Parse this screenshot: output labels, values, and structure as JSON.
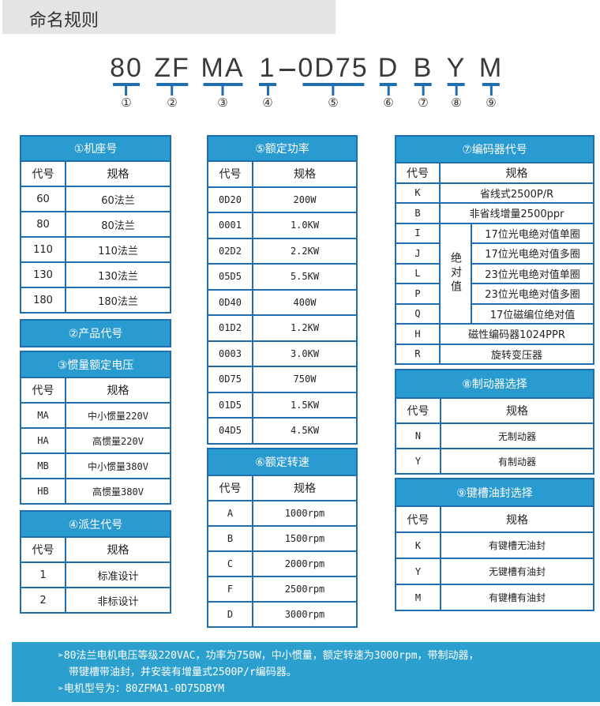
{
  "header": {
    "title": "命名规则"
  },
  "model": {
    "segments": [
      {
        "code": "80",
        "num": "①"
      },
      {
        "code": "ZF",
        "num": "②"
      },
      {
        "code": "MA",
        "num": "③"
      },
      {
        "code": "1",
        "num": "④"
      },
      {
        "code": "0D75",
        "num": "⑤"
      },
      {
        "code": "D",
        "num": "⑥"
      },
      {
        "code": "B",
        "num": "⑦"
      },
      {
        "code": "Y",
        "num": "⑧"
      },
      {
        "code": "M",
        "num": "⑨"
      }
    ]
  },
  "col_code": "代号",
  "col_spec": "规格",
  "frame": {
    "title": "①机座号",
    "rows": [
      [
        "60",
        "60法兰"
      ],
      [
        "80",
        "80法兰"
      ],
      [
        "110",
        "110法兰"
      ],
      [
        "130",
        "130法兰"
      ],
      [
        "180",
        "180法兰"
      ]
    ]
  },
  "product": {
    "title": "②产品代号"
  },
  "inertia": {
    "title": "③惯量额定电压",
    "rows": [
      [
        "MA",
        "中小惯量220V"
      ],
      [
        "HA",
        "高惯量220V"
      ],
      [
        "MB",
        "中小惯量380V"
      ],
      [
        "HB",
        "高惯量380V"
      ]
    ]
  },
  "derived": {
    "title": "④派生代号",
    "rows": [
      [
        "1",
        "标准设计"
      ],
      [
        "2",
        "非标设计"
      ]
    ]
  },
  "power": {
    "title": "⑤额定功率",
    "rows": [
      [
        "0D20",
        "200W"
      ],
      [
        "0001",
        "1.0KW"
      ],
      [
        "02D2",
        "2.2KW"
      ],
      [
        "05D5",
        "5.5KW"
      ],
      [
        "0D40",
        "400W"
      ],
      [
        "01D2",
        "1.2KW"
      ],
      [
        "0003",
        "3.0KW"
      ],
      [
        "0D75",
        "750W"
      ],
      [
        "01D5",
        "1.5KW"
      ],
      [
        "04D5",
        "4.5KW"
      ]
    ]
  },
  "speed": {
    "title": "⑥额定转速",
    "rows": [
      [
        "A",
        "1000rpm"
      ],
      [
        "B",
        "1500rpm"
      ],
      [
        "C",
        "2000rpm"
      ],
      [
        "F",
        "2500rpm"
      ],
      [
        "D",
        "3000rpm"
      ]
    ]
  },
  "encoder": {
    "title": "⑦编码器代号",
    "group_label": "绝对值",
    "top_rows": [
      [
        "K",
        "省线式2500P/R"
      ],
      [
        "B",
        "非省线增量2500ppr"
      ]
    ],
    "abs_rows": [
      [
        "I",
        "17位光电绝对值单圈"
      ],
      [
        "J",
        "17位光电绝对值多圈"
      ],
      [
        "L",
        "23位光电绝对值单圈"
      ],
      [
        "P",
        "23位光电绝对值多圈"
      ],
      [
        "Q",
        "17位磁编位绝对值"
      ]
    ],
    "bottom_rows": [
      [
        "H",
        "磁性编码器1024PPR"
      ],
      [
        "R",
        "旋转变压器"
      ]
    ]
  },
  "brake": {
    "title": "⑧制动器选择",
    "rows": [
      [
        "N",
        "无制动器"
      ],
      [
        "Y",
        "有制动器"
      ]
    ]
  },
  "keyway": {
    "title": "⑨键槽油封选择",
    "rows": [
      [
        "K",
        "有键槽无油封"
      ],
      [
        "Y",
        "无键槽有油封"
      ],
      [
        "M",
        "有键槽有油封"
      ]
    ]
  },
  "example": {
    "line1": "➢80法兰电机电压等级220VAC，功率为750W，中小惯量，额定转速为3000rpm，带制动器，",
    "line2": "带键槽带油封，并安装有增量式2500P/r编码器。",
    "line3": "➢电机型号为：80ZFMA1-0D75DBYM"
  }
}
